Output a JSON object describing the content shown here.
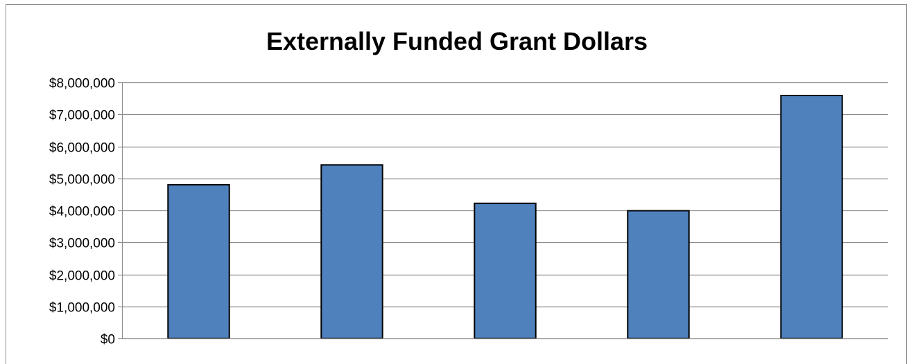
{
  "chart_data": {
    "type": "bar",
    "title": "Externally Funded Grant Dollars",
    "xlabel": "",
    "ylabel": "",
    "categories": [
      "",
      "",
      "",
      "",
      ""
    ],
    "values": [
      4800000,
      5420000,
      4220000,
      3990000,
      7590000
    ],
    "ylim": [
      0,
      8000000
    ],
    "yticks": [
      0,
      1000000,
      2000000,
      3000000,
      4000000,
      5000000,
      6000000,
      7000000,
      8000000
    ],
    "ytick_labels": [
      "$0",
      "$1,000,000",
      "$2,000,000",
      "$3,000,000",
      "$4,000,000",
      "$5,000,000",
      "$6,000,000",
      "$7,000,000",
      "$8,000,000"
    ],
    "grid": true,
    "legend": "none",
    "bar_color": "#4f81bd",
    "bar_edge_color": "#000000",
    "gridline_color": "#8c8c8c"
  }
}
